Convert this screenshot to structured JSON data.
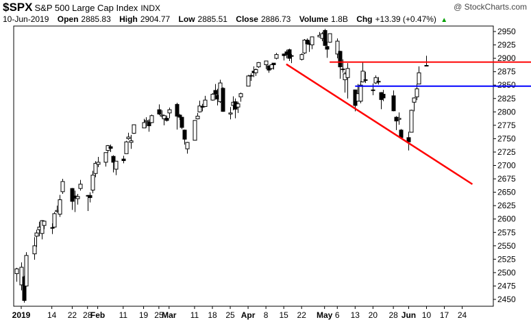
{
  "header": {
    "ticker": "$SPX",
    "name": "S&P 500 Large Cap Index",
    "exchange": "INDX",
    "watermark": "@ StockCharts.com",
    "date": "10-Jun-2019",
    "open_label": "Open",
    "open": "2885.83",
    "high_label": "High",
    "high": "2904.77",
    "low_label": "Low",
    "low": "2885.51",
    "close_label": "Close",
    "close": "2886.73",
    "volume_label": "Volume",
    "volume": "1.8B",
    "chg_label": "Chg",
    "chg": "+13.39 (+0.47%)",
    "chg_arrow": "▲"
  },
  "colors": {
    "up_fill": "#ffffff",
    "down_fill": "#000000",
    "candle_line": "#000000",
    "trend_line": "#ff0000",
    "resistance_line": "#ff0000",
    "support_line": "#0000ff",
    "grid": "#cccccc"
  },
  "chart_data": {
    "type": "candlestick",
    "y_ticks": [
      2450,
      2475,
      2500,
      2525,
      2550,
      2575,
      2600,
      2625,
      2650,
      2675,
      2700,
      2725,
      2750,
      2775,
      2800,
      2825,
      2850,
      2875,
      2900,
      2925,
      2950
    ],
    "ylim": [
      2438,
      2963
    ],
    "x_labels": [
      {
        "text": "2019",
        "date": "2019-01-02",
        "bold": true
      },
      {
        "text": "14",
        "date": "2019-01-14"
      },
      {
        "text": "22",
        "date": "2019-01-22"
      },
      {
        "text": "28",
        "date": "2019-01-28"
      },
      {
        "text": "Feb",
        "date": "2019-02-01",
        "bold": true
      },
      {
        "text": "11",
        "date": "2019-02-11"
      },
      {
        "text": "19",
        "date": "2019-02-19"
      },
      {
        "text": "25",
        "date": "2019-02-25"
      },
      {
        "text": "Mar",
        "date": "2019-03-01",
        "bold": true
      },
      {
        "text": "11",
        "date": "2019-03-11"
      },
      {
        "text": "18",
        "date": "2019-03-18"
      },
      {
        "text": "25",
        "date": "2019-03-25"
      },
      {
        "text": "Apr",
        "date": "2019-04-01",
        "bold": true
      },
      {
        "text": "8",
        "date": "2019-04-08"
      },
      {
        "text": "15",
        "date": "2019-04-15"
      },
      {
        "text": "22",
        "date": "2019-04-22"
      },
      {
        "text": "May",
        "date": "2019-05-01",
        "bold": true
      },
      {
        "text": "6",
        "date": "2019-05-06"
      },
      {
        "text": "13",
        "date": "2019-05-13"
      },
      {
        "text": "20",
        "date": "2019-05-20"
      },
      {
        "text": "28",
        "date": "2019-05-28"
      },
      {
        "text": "Jun",
        "date": "2019-06-03",
        "bold": true
      },
      {
        "text": "10",
        "date": "2019-06-10"
      },
      {
        "text": "17",
        "date": "2019-06-17"
      },
      {
        "text": "24",
        "date": "2019-06-24"
      }
    ],
    "candles": [
      {
        "date": "2018-12-31",
        "o": 2498,
        "h": 2509,
        "l": 2483,
        "c": 2507
      },
      {
        "date": "2019-01-02",
        "o": 2477,
        "h": 2519,
        "l": 2467,
        "c": 2510
      },
      {
        "date": "2019-01-03",
        "o": 2492,
        "h": 2494,
        "l": 2444,
        "c": 2448
      },
      {
        "date": "2019-01-04",
        "o": 2475,
        "h": 2538,
        "l": 2475,
        "c": 2532
      },
      {
        "date": "2019-01-07",
        "o": 2535,
        "h": 2566,
        "l": 2524,
        "c": 2550
      },
      {
        "date": "2019-01-08",
        "o": 2568,
        "h": 2580,
        "l": 2548,
        "c": 2574
      },
      {
        "date": "2019-01-09",
        "o": 2580,
        "h": 2595,
        "l": 2568,
        "c": 2585
      },
      {
        "date": "2019-01-10",
        "o": 2573,
        "h": 2598,
        "l": 2562,
        "c": 2597
      },
      {
        "date": "2019-01-11",
        "o": 2588,
        "h": 2597,
        "l": 2581,
        "c": 2596
      },
      {
        "date": "2019-01-14",
        "o": 2584,
        "h": 2592,
        "l": 2572,
        "c": 2583
      },
      {
        "date": "2019-01-15",
        "o": 2585,
        "h": 2613,
        "l": 2585,
        "c": 2610
      },
      {
        "date": "2019-01-16",
        "o": 2614,
        "h": 2625,
        "l": 2612,
        "c": 2616
      },
      {
        "date": "2019-01-17",
        "o": 2609,
        "h": 2645,
        "l": 2604,
        "c": 2636
      },
      {
        "date": "2019-01-18",
        "o": 2651,
        "h": 2675,
        "l": 2647,
        "c": 2670
      },
      {
        "date": "2019-01-22",
        "o": 2657,
        "h": 2658,
        "l": 2617,
        "c": 2633
      },
      {
        "date": "2019-01-23",
        "o": 2643,
        "h": 2653,
        "l": 2613,
        "c": 2639
      },
      {
        "date": "2019-01-24",
        "o": 2638,
        "h": 2647,
        "l": 2627,
        "c": 2642
      },
      {
        "date": "2019-01-25",
        "o": 2657,
        "h": 2673,
        "l": 2653,
        "c": 2665
      },
      {
        "date": "2019-01-28",
        "o": 2644,
        "h": 2645,
        "l": 2615,
        "c": 2643
      },
      {
        "date": "2019-01-29",
        "o": 2644,
        "h": 2650,
        "l": 2631,
        "c": 2640
      },
      {
        "date": "2019-01-30",
        "o": 2654,
        "h": 2690,
        "l": 2648,
        "c": 2682
      },
      {
        "date": "2019-01-31",
        "o": 2685,
        "h": 2708,
        "l": 2678,
        "c": 2704
      },
      {
        "date": "2019-02-01",
        "o": 2702,
        "h": 2716,
        "l": 2697,
        "c": 2706
      },
      {
        "date": "2019-02-04",
        "o": 2706,
        "h": 2724,
        "l": 2698,
        "c": 2724
      },
      {
        "date": "2019-02-05",
        "o": 2728,
        "h": 2738,
        "l": 2724,
        "c": 2737
      },
      {
        "date": "2019-02-06",
        "o": 2735,
        "h": 2739,
        "l": 2725,
        "c": 2732
      },
      {
        "date": "2019-02-07",
        "o": 2717,
        "h": 2719,
        "l": 2687,
        "c": 2706
      },
      {
        "date": "2019-02-08",
        "o": 2693,
        "h": 2708,
        "l": 2682,
        "c": 2708
      },
      {
        "date": "2019-02-11",
        "o": 2712,
        "h": 2718,
        "l": 2704,
        "c": 2709
      },
      {
        "date": "2019-02-12",
        "o": 2722,
        "h": 2746,
        "l": 2722,
        "c": 2744
      },
      {
        "date": "2019-02-13",
        "o": 2750,
        "h": 2761,
        "l": 2748,
        "c": 2753
      },
      {
        "date": "2019-02-14",
        "o": 2743,
        "h": 2757,
        "l": 2731,
        "c": 2746
      },
      {
        "date": "2019-02-15",
        "o": 2760,
        "h": 2776,
        "l": 2759,
        "c": 2776
      },
      {
        "date": "2019-02-19",
        "o": 2770,
        "h": 2787,
        "l": 2770,
        "c": 2780
      },
      {
        "date": "2019-02-20",
        "o": 2782,
        "h": 2790,
        "l": 2771,
        "c": 2784
      },
      {
        "date": "2019-02-21",
        "o": 2781,
        "h": 2786,
        "l": 2763,
        "c": 2774
      },
      {
        "date": "2019-02-22",
        "o": 2780,
        "h": 2795,
        "l": 2779,
        "c": 2793
      },
      {
        "date": "2019-02-25",
        "o": 2804,
        "h": 2814,
        "l": 2794,
        "c": 2796
      },
      {
        "date": "2019-02-26",
        "o": 2792,
        "h": 2803,
        "l": 2789,
        "c": 2794
      },
      {
        "date": "2019-02-27",
        "o": 2787,
        "h": 2795,
        "l": 2775,
        "c": 2793
      },
      {
        "date": "2019-02-28",
        "o": 2788,
        "h": 2793,
        "l": 2782,
        "c": 2784
      },
      {
        "date": "2019-03-01",
        "o": 2798,
        "h": 2808,
        "l": 2788,
        "c": 2804
      },
      {
        "date": "2019-03-04",
        "o": 2814,
        "h": 2817,
        "l": 2767,
        "c": 2792
      },
      {
        "date": "2019-03-05",
        "o": 2794,
        "h": 2796,
        "l": 2785,
        "c": 2790
      },
      {
        "date": "2019-03-06",
        "o": 2790,
        "h": 2790,
        "l": 2768,
        "c": 2771
      },
      {
        "date": "2019-03-07",
        "o": 2766,
        "h": 2767,
        "l": 2739,
        "c": 2749
      },
      {
        "date": "2019-03-08",
        "o": 2731,
        "h": 2744,
        "l": 2722,
        "c": 2743
      },
      {
        "date": "2019-03-11",
        "o": 2747,
        "h": 2784,
        "l": 2747,
        "c": 2784
      },
      {
        "date": "2019-03-12",
        "o": 2787,
        "h": 2798,
        "l": 2786,
        "c": 2792
      },
      {
        "date": "2019-03-13",
        "o": 2800,
        "h": 2821,
        "l": 2799,
        "c": 2811
      },
      {
        "date": "2019-03-14",
        "o": 2810,
        "h": 2815,
        "l": 2801,
        "c": 2809
      },
      {
        "date": "2019-03-15",
        "o": 2810,
        "h": 2830,
        "l": 2809,
        "c": 2822
      },
      {
        "date": "2019-03-18",
        "o": 2822,
        "h": 2835,
        "l": 2821,
        "c": 2833
      },
      {
        "date": "2019-03-19",
        "o": 2840,
        "h": 2852,
        "l": 2823,
        "c": 2833
      },
      {
        "date": "2019-03-20",
        "o": 2831,
        "h": 2843,
        "l": 2812,
        "c": 2824
      },
      {
        "date": "2019-03-21",
        "o": 2819,
        "h": 2860,
        "l": 2817,
        "c": 2854
      },
      {
        "date": "2019-03-22",
        "o": 2844,
        "h": 2846,
        "l": 2800,
        "c": 2801
      },
      {
        "date": "2019-03-25",
        "o": 2796,
        "h": 2809,
        "l": 2786,
        "c": 2798
      },
      {
        "date": "2019-03-26",
        "o": 2812,
        "h": 2829,
        "l": 2803,
        "c": 2818
      },
      {
        "date": "2019-03-27",
        "o": 2819,
        "h": 2825,
        "l": 2788,
        "c": 2805
      },
      {
        "date": "2019-03-28",
        "o": 2809,
        "h": 2819,
        "l": 2798,
        "c": 2815
      },
      {
        "date": "2019-03-29",
        "o": 2828,
        "h": 2836,
        "l": 2819,
        "c": 2834
      },
      {
        "date": "2019-04-01",
        "o": 2848,
        "h": 2869,
        "l": 2848,
        "c": 2867
      },
      {
        "date": "2019-04-02",
        "o": 2868,
        "h": 2872,
        "l": 2858,
        "c": 2867
      },
      {
        "date": "2019-04-03",
        "o": 2876,
        "h": 2885,
        "l": 2865,
        "c": 2873
      },
      {
        "date": "2019-04-04",
        "o": 2873,
        "h": 2881,
        "l": 2867,
        "c": 2879
      },
      {
        "date": "2019-04-05",
        "o": 2884,
        "h": 2893,
        "l": 2882,
        "c": 2892
      },
      {
        "date": "2019-04-08",
        "o": 2888,
        "h": 2895,
        "l": 2880,
        "c": 2895
      },
      {
        "date": "2019-04-09",
        "o": 2886,
        "h": 2886,
        "l": 2873,
        "c": 2878
      },
      {
        "date": "2019-04-10",
        "o": 2881,
        "h": 2889,
        "l": 2879,
        "c": 2888
      },
      {
        "date": "2019-04-11",
        "o": 2891,
        "h": 2891,
        "l": 2879,
        "c": 2888
      },
      {
        "date": "2019-04-12",
        "o": 2900,
        "h": 2910,
        "l": 2898,
        "c": 2907
      },
      {
        "date": "2019-04-15",
        "o": 2908,
        "h": 2909,
        "l": 2896,
        "c": 2905
      },
      {
        "date": "2019-04-16",
        "o": 2912,
        "h": 2916,
        "l": 2900,
        "c": 2907
      },
      {
        "date": "2019-04-17",
        "o": 2916,
        "h": 2918,
        "l": 2895,
        "c": 2900
      },
      {
        "date": "2019-04-18",
        "o": 2904,
        "h": 2908,
        "l": 2891,
        "c": 2905
      },
      {
        "date": "2019-04-22",
        "o": 2898,
        "h": 2909,
        "l": 2896,
        "c": 2907
      },
      {
        "date": "2019-04-23",
        "o": 2910,
        "h": 2936,
        "l": 2908,
        "c": 2934
      },
      {
        "date": "2019-04-24",
        "o": 2934,
        "h": 2937,
        "l": 2926,
        "c": 2927
      },
      {
        "date": "2019-04-25",
        "o": 2928,
        "h": 2933,
        "l": 2912,
        "c": 2926
      },
      {
        "date": "2019-04-26",
        "o": 2925,
        "h": 2940,
        "l": 2917,
        "c": 2940
      },
      {
        "date": "2019-04-29",
        "o": 2940,
        "h": 2949,
        "l": 2939,
        "c": 2943
      },
      {
        "date": "2019-04-30",
        "o": 2937,
        "h": 2949,
        "l": 2932,
        "c": 2946
      },
      {
        "date": "2019-05-01",
        "o": 2952,
        "h": 2955,
        "l": 2923,
        "c": 2924
      },
      {
        "date": "2019-05-02",
        "o": 2922,
        "h": 2931,
        "l": 2901,
        "c": 2917
      },
      {
        "date": "2019-05-03",
        "o": 2930,
        "h": 2946,
        "l": 2929,
        "c": 2946
      },
      {
        "date": "2019-05-06",
        "o": 2908,
        "h": 2937,
        "l": 2900,
        "c": 2932
      },
      {
        "date": "2019-05-07",
        "o": 2913,
        "h": 2914,
        "l": 2862,
        "c": 2884
      },
      {
        "date": "2019-05-08",
        "o": 2880,
        "h": 2898,
        "l": 2873,
        "c": 2880
      },
      {
        "date": "2019-05-09",
        "o": 2860,
        "h": 2875,
        "l": 2836,
        "c": 2871
      },
      {
        "date": "2019-05-10",
        "o": 2864,
        "h": 2891,
        "l": 2825,
        "c": 2881
      },
      {
        "date": "2019-05-13",
        "o": 2841,
        "h": 2841,
        "l": 2801,
        "c": 2812
      },
      {
        "date": "2019-05-14",
        "o": 2820,
        "h": 2852,
        "l": 2820,
        "c": 2834
      },
      {
        "date": "2019-05-15",
        "o": 2820,
        "h": 2858,
        "l": 2816,
        "c": 2850
      },
      {
        "date": "2019-05-16",
        "o": 2856,
        "h": 2892,
        "l": 2855,
        "c": 2876
      },
      {
        "date": "2019-05-17",
        "o": 2859,
        "h": 2875,
        "l": 2854,
        "c": 2860
      },
      {
        "date": "2019-05-20",
        "o": 2841,
        "h": 2853,
        "l": 2831,
        "c": 2840
      },
      {
        "date": "2019-05-21",
        "o": 2854,
        "h": 2868,
        "l": 2852,
        "c": 2864
      },
      {
        "date": "2019-05-22",
        "o": 2856,
        "h": 2865,
        "l": 2851,
        "c": 2857
      },
      {
        "date": "2019-05-23",
        "o": 2836,
        "h": 2837,
        "l": 2805,
        "c": 2823
      },
      {
        "date": "2019-05-24",
        "o": 2833,
        "h": 2841,
        "l": 2820,
        "c": 2826
      },
      {
        "date": "2019-05-28",
        "o": 2830,
        "h": 2840,
        "l": 2801,
        "c": 2802
      },
      {
        "date": "2019-05-29",
        "o": 2790,
        "h": 2792,
        "l": 2766,
        "c": 2783
      },
      {
        "date": "2019-05-30",
        "o": 2786,
        "h": 2799,
        "l": 2776,
        "c": 2788
      },
      {
        "date": "2019-05-31",
        "o": 2766,
        "h": 2768,
        "l": 2750,
        "c": 2752
      },
      {
        "date": "2019-06-03",
        "o": 2752,
        "h": 2763,
        "l": 2728,
        "c": 2744
      },
      {
        "date": "2019-06-04",
        "o": 2762,
        "h": 2804,
        "l": 2762,
        "c": 2803
      },
      {
        "date": "2019-06-05",
        "o": 2818,
        "h": 2827,
        "l": 2801,
        "c": 2826
      },
      {
        "date": "2019-06-06",
        "o": 2828,
        "h": 2852,
        "l": 2822,
        "c": 2843
      },
      {
        "date": "2019-06-07",
        "o": 2852,
        "h": 2885,
        "l": 2852,
        "c": 2873
      },
      {
        "date": "2019-06-10",
        "o": 2885.83,
        "h": 2904.77,
        "l": 2885.51,
        "c": 2886.73
      }
    ],
    "annotations": [
      {
        "type": "trendline",
        "color": "#ff0000",
        "from": {
          "date": "2019-04-16",
          "value": 2889
        },
        "to": {
          "date": "2019-06-28",
          "value": 2665
        }
      },
      {
        "type": "horizontal",
        "color": "#ff0000",
        "value": 2893,
        "from_date": "2019-05-03"
      },
      {
        "type": "horizontal",
        "color": "#0000ff",
        "value": 2848,
        "from_date": "2019-05-13"
      }
    ]
  }
}
